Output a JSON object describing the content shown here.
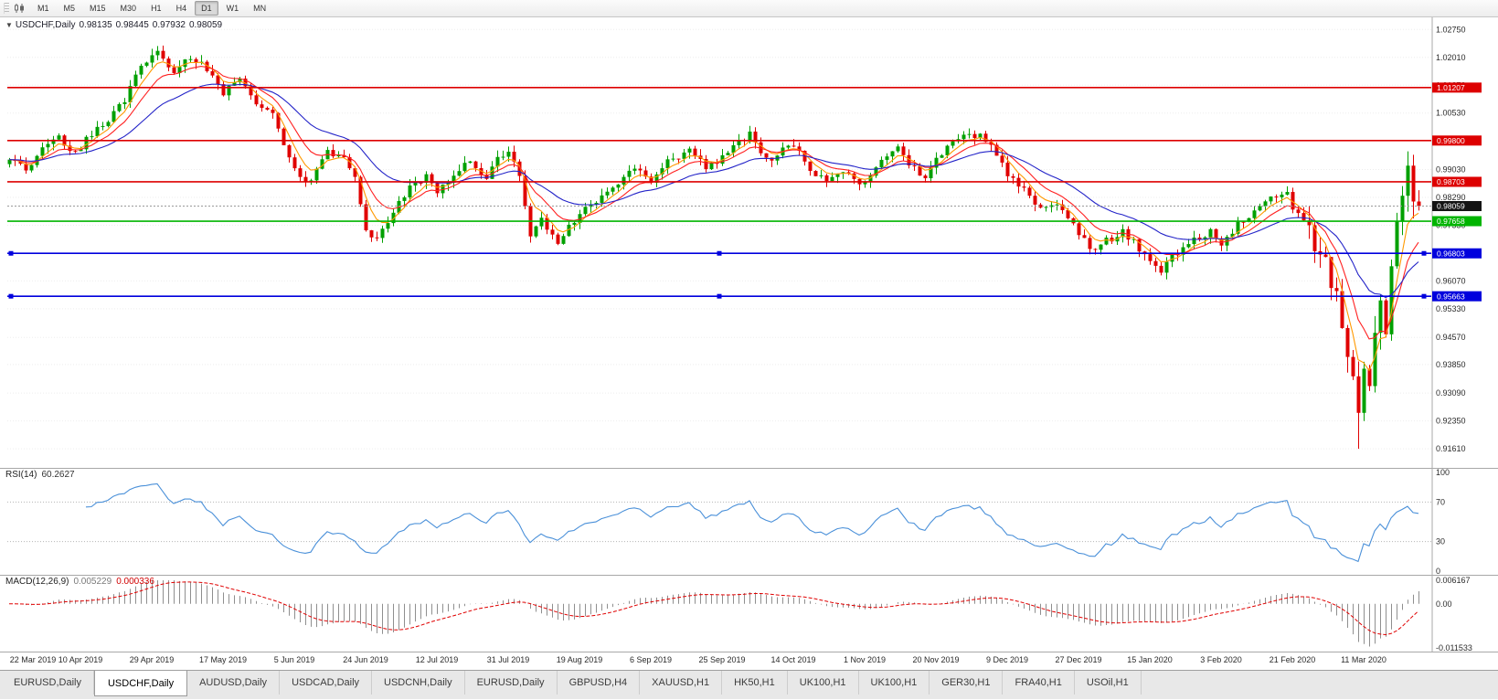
{
  "toolbar": {
    "timeframes": [
      "M1",
      "M5",
      "M15",
      "M30",
      "H1",
      "H4",
      "D1",
      "W1",
      "MN"
    ],
    "active_timeframe": "D1"
  },
  "chart_header": {
    "dropdown_icon": "▼",
    "symbol_period": "USDCHF,Daily",
    "open": "0.98135",
    "high": "0.98445",
    "low": "0.97932",
    "close": "0.98059"
  },
  "price_scale": {
    "ticks": [
      "1.02750",
      "1.02010",
      "1.01270",
      "1.00530",
      "0.99030",
      "0.98290",
      "0.97550",
      "0.96810",
      "0.96070",
      "0.95330",
      "0.94570",
      "0.93850",
      "0.93090",
      "0.92350",
      "0.91610"
    ],
    "top_price": 1.03,
    "bottom_price": 0.912
  },
  "chart_data": {
    "type": "candlestick",
    "symbol": "USDCHF",
    "timeframe": "Daily",
    "title": "USDCHF,Daily 0.98135 0.98445 0.97932 0.98059",
    "bar_count": 258,
    "bars_per_date_label": 13,
    "date_labels": [
      "22 Mar 2019",
      "10 Apr 2019",
      "29 Apr 2019",
      "17 May 2019",
      "5 Jun 2019",
      "24 Jun 2019",
      "12 Jul 2019",
      "31 Jul 2019",
      "19 Aug 2019",
      "6 Sep 2019",
      "25 Sep 2019",
      "14 Oct 2019",
      "1 Nov 2019",
      "20 Nov 2019",
      "9 Dec 2019",
      "27 Dec 2019",
      "15 Jan 2020",
      "3 Feb 2020",
      "21 Feb 2020",
      "11 Mar 2020"
    ],
    "close_waypoints": [
      [
        0,
        0.9935
      ],
      [
        3,
        0.9905
      ],
      [
        6,
        0.996
      ],
      [
        9,
        0.9985
      ],
      [
        12,
        0.9945
      ],
      [
        15,
        1.0
      ],
      [
        18,
        1.0035
      ],
      [
        21,
        1.009
      ],
      [
        24,
        1.0185
      ],
      [
        27,
        1.0215
      ],
      [
        30,
        1.016
      ],
      [
        33,
        1.02
      ],
      [
        36,
        1.017
      ],
      [
        39,
        1.0105
      ],
      [
        42,
        1.014
      ],
      [
        45,
        1.008
      ],
      [
        48,
        1.0045
      ],
      [
        52,
        0.9905
      ],
      [
        55,
        0.9865
      ],
      [
        58,
        0.9955
      ],
      [
        61,
        0.993
      ],
      [
        63,
        0.989
      ],
      [
        65,
        0.9745
      ],
      [
        67,
        0.9712
      ],
      [
        70,
        0.9795
      ],
      [
        73,
        0.9855
      ],
      [
        76,
        0.9885
      ],
      [
        78,
        0.9845
      ],
      [
        81,
        0.9895
      ],
      [
        84,
        0.9925
      ],
      [
        87,
        0.9875
      ],
      [
        89,
        0.9935
      ],
      [
        91,
        0.9955
      ],
      [
        93,
        0.9895
      ],
      [
        95,
        0.9725
      ],
      [
        97,
        0.9765
      ],
      [
        100,
        0.9705
      ],
      [
        104,
        0.979
      ],
      [
        108,
        0.9835
      ],
      [
        112,
        0.9885
      ],
      [
        115,
        0.9905
      ],
      [
        117,
        0.9875
      ],
      [
        120,
        0.9925
      ],
      [
        124,
        0.9955
      ],
      [
        127,
        0.9905
      ],
      [
        130,
        0.9935
      ],
      [
        133,
        0.9975
      ],
      [
        135,
        1.0005
      ],
      [
        138,
        0.9925
      ],
      [
        141,
        0.9955
      ],
      [
        143,
        0.9965
      ],
      [
        146,
        0.9905
      ],
      [
        149,
        0.9875
      ],
      [
        152,
        0.9895
      ],
      [
        156,
        0.9865
      ],
      [
        159,
        0.9925
      ],
      [
        162,
        0.9955
      ],
      [
        165,
        0.9905
      ],
      [
        167,
        0.9885
      ],
      [
        169,
        0.9925
      ],
      [
        172,
        0.9975
      ],
      [
        175,
        0.9995
      ],
      [
        178,
        0.9985
      ],
      [
        180,
        0.9935
      ],
      [
        182,
        0.9895
      ],
      [
        185,
        0.9845
      ],
      [
        188,
        0.9795
      ],
      [
        191,
        0.9815
      ],
      [
        193,
        0.9775
      ],
      [
        195,
        0.9735
      ],
      [
        198,
        0.9685
      ],
      [
        200,
        0.9715
      ],
      [
        203,
        0.9735
      ],
      [
        206,
        0.9695
      ],
      [
        208,
        0.9655
      ],
      [
        210,
        0.9635
      ],
      [
        213,
        0.9685
      ],
      [
        216,
        0.9715
      ],
      [
        219,
        0.9735
      ],
      [
        221,
        0.9705
      ],
      [
        224,
        0.9755
      ],
      [
        227,
        0.9795
      ],
      [
        230,
        0.9825
      ],
      [
        233,
        0.9845
      ],
      [
        234,
        0.9805
      ],
      [
        236,
        0.9785
      ],
      [
        238,
        0.9705
      ],
      [
        240,
        0.9655
      ],
      [
        242,
        0.9565
      ],
      [
        244,
        0.9425
      ],
      [
        246,
        0.9265
      ],
      [
        247,
        0.9385
      ],
      [
        248,
        0.9325
      ],
      [
        249,
        0.9455
      ],
      [
        250,
        0.9555
      ],
      [
        251,
        0.9485
      ],
      [
        252,
        0.9655
      ],
      [
        253,
        0.9755
      ],
      [
        254,
        0.9855
      ],
      [
        255,
        0.9895
      ],
      [
        256,
        0.9825
      ],
      [
        257,
        0.98059
      ]
    ],
    "final_close": 0.98059,
    "crash_low_index": 246,
    "crash_low": 0.9161,
    "candle_colors": {
      "up": "#00a000",
      "down": "#e00000"
    },
    "moving_averages": [
      {
        "period": 5,
        "color": "#ff9900"
      },
      {
        "period": 10,
        "color": "#ff2020"
      },
      {
        "period": 24,
        "color": "#2323c8"
      }
    ],
    "levels": [
      {
        "label": "1.01207",
        "price": 1.01207,
        "color": "#dd0000",
        "selected": false
      },
      {
        "label": "0.99800",
        "price": 0.998,
        "color": "#dd0000",
        "selected": false
      },
      {
        "label": "0.98703",
        "price": 0.98703,
        "color": "#dd0000",
        "selected": false
      },
      {
        "label": "0.97658",
        "price": 0.97658,
        "color": "#00b400",
        "selected": false
      },
      {
        "label": "0.96803",
        "price": 0.96803,
        "color": "#0000dd",
        "selected": true
      },
      {
        "label": "0.95663",
        "price": 0.95663,
        "color": "#0000dd",
        "selected": true
      }
    ],
    "current_price": {
      "label": "0.98059",
      "price": 0.98059,
      "badge_color": "#141414"
    },
    "rsi": {
      "name": "RSI(14)",
      "period": 14,
      "value": "60.2627",
      "color": "#4a90d9",
      "scale_labels": [
        "100",
        "70",
        "30",
        "0"
      ],
      "dotted_levels": [
        70,
        30
      ]
    },
    "macd": {
      "name": "MACD(12,26,9)",
      "fast": 12,
      "slow": 26,
      "signal": 9,
      "main_value": "0.005229",
      "signal_value": "0.000336",
      "scale_labels": [
        "0.006167",
        "0.00",
        "-0.011533"
      ],
      "axis_max": 0.006167,
      "axis_min": -0.011533,
      "histogram_color": "#8f8f8f",
      "signal_color": "#e00000"
    }
  },
  "tabs": {
    "items": [
      {
        "label": "EURUSD,Daily",
        "active": false
      },
      {
        "label": "USDCHF,Daily",
        "active": true
      },
      {
        "label": "AUDUSD,Daily",
        "active": false
      },
      {
        "label": "USDCAD,Daily",
        "active": false
      },
      {
        "label": "USDCNH,Daily",
        "active": false
      },
      {
        "label": "EURUSD,Daily",
        "active": false
      },
      {
        "label": "GBPUSD,H4",
        "active": false
      },
      {
        "label": "XAUUSD,H1",
        "active": false
      },
      {
        "label": "HK50,H1",
        "active": false
      },
      {
        "label": "UK100,H1",
        "active": false
      },
      {
        "label": "UK100,H1",
        "active": false
      },
      {
        "label": "GER30,H1",
        "active": false
      },
      {
        "label": "FRA40,H1",
        "active": false
      },
      {
        "label": "USOil,H1",
        "active": false
      }
    ]
  }
}
